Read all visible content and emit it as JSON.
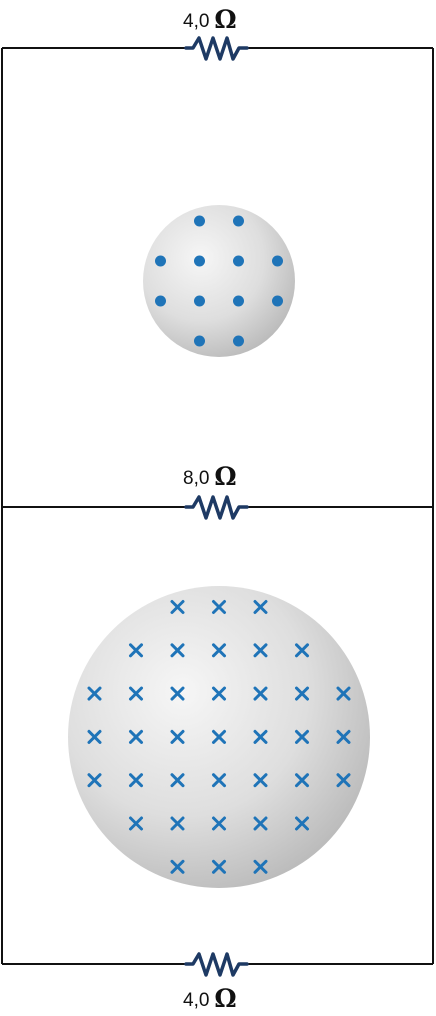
{
  "resistors": {
    "top": {
      "value": "4,0",
      "unit": "Ω"
    },
    "middle": {
      "value": "8,0",
      "unit": "Ω"
    },
    "bottom": {
      "value": "4,0",
      "unit": "Ω"
    }
  },
  "colors": {
    "wire": "#111111",
    "resistor": "#1e3a64",
    "field_symbol": "#1f74b8",
    "region_fill_light": "#f4f4f4",
    "region_fill_dark": "#b8b8b8"
  },
  "upper_region": {
    "field_direction": "out-of-page",
    "symbol": "dot",
    "row_counts": [
      2,
      4,
      4,
      2
    ]
  },
  "lower_region": {
    "field_direction": "into-page",
    "symbol": "cross",
    "row_counts": [
      3,
      5,
      7,
      7,
      7,
      5,
      3
    ]
  }
}
